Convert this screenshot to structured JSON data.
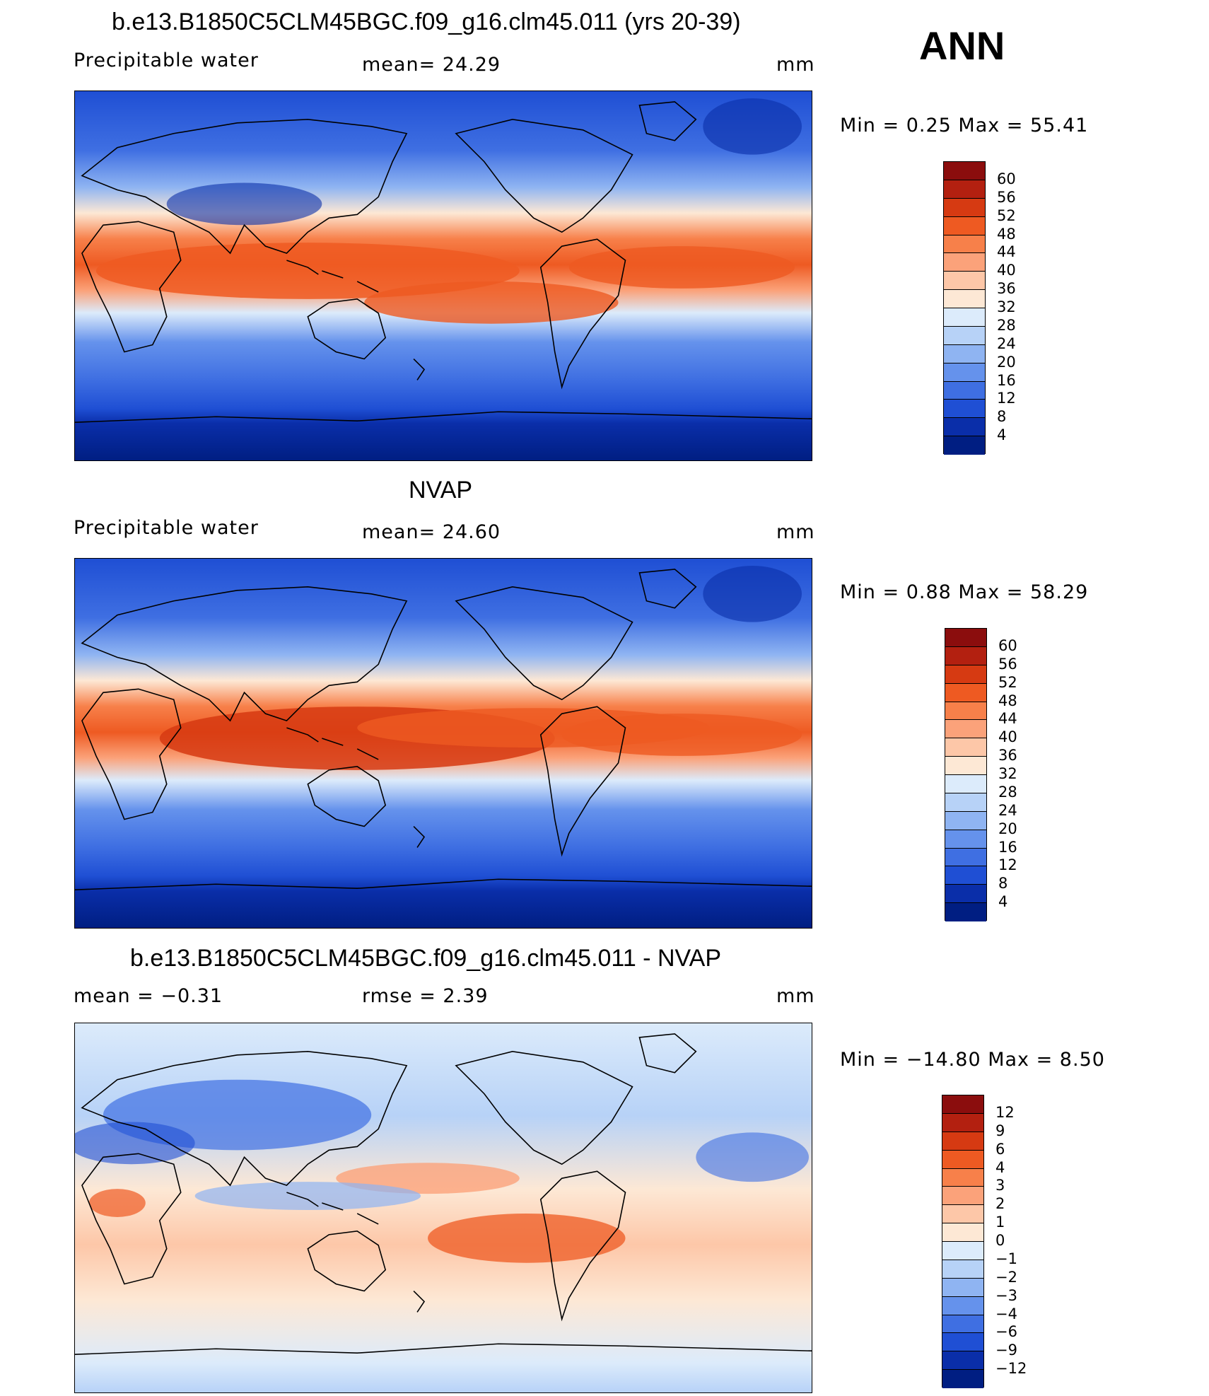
{
  "header": {
    "annotation": "ANN"
  },
  "panels": [
    {
      "title": "b.e13.B1850C5CLM45BGC.f09_g16.clm45.011 (yrs 20-39)",
      "left_label": "Precipitable  water",
      "center_label": "mean=   24.29",
      "units": "mm",
      "stats": "Min  =     0.25  Max  =    55.41",
      "colorbar_labels": [
        "60",
        "56",
        "52",
        "48",
        "44",
        "40",
        "36",
        "32",
        "28",
        "24",
        "20",
        "16",
        "12",
        "8",
        "4"
      ],
      "colorbar_colors": [
        "#8b0d0d",
        "#b32010",
        "#d63a12",
        "#ee5a22",
        "#f7804a",
        "#fba27a",
        "#fdc7a8",
        "#fde8d5",
        "#dcebfb",
        "#b7d2f7",
        "#8fb4f2",
        "#6592ec",
        "#3f6fe2",
        "#1f4fd4",
        "#0a2ea9",
        "#001e82"
      ]
    },
    {
      "title": "NVAP",
      "left_label": "Precipitable  water",
      "center_label": "mean=   24.60",
      "units": "mm",
      "stats": "Min  =     0.88  Max  =    58.29",
      "colorbar_labels": [
        "60",
        "56",
        "52",
        "48",
        "44",
        "40",
        "36",
        "32",
        "28",
        "24",
        "20",
        "16",
        "12",
        "8",
        "4"
      ],
      "colorbar_colors": [
        "#8b0d0d",
        "#b32010",
        "#d63a12",
        "#ee5a22",
        "#f7804a",
        "#fba27a",
        "#fdc7a8",
        "#fde8d5",
        "#dcebfb",
        "#b7d2f7",
        "#8fb4f2",
        "#6592ec",
        "#3f6fe2",
        "#1f4fd4",
        "#0a2ea9",
        "#001e82"
      ]
    },
    {
      "title": "b.e13.B1850C5CLM45BGC.f09_g16.clm45.011 - NVAP",
      "left_label": "mean  =    −0.31",
      "center_label": "rmse  =     2.39",
      "units": "mm",
      "stats": "Min  = −14.80  Max  =       8.50",
      "colorbar_labels": [
        "12",
        "9",
        "6",
        "4",
        "3",
        "2",
        "1",
        "0",
        "−1",
        "−2",
        "−3",
        "−4",
        "−6",
        "−9",
        "−12"
      ],
      "colorbar_colors": [
        "#8b0d0d",
        "#b32010",
        "#d63a12",
        "#ee5a22",
        "#f7804a",
        "#fba27a",
        "#fdc7a8",
        "#fde8d5",
        "#dcebfb",
        "#b7d2f7",
        "#8fb4f2",
        "#6592ec",
        "#3f6fe2",
        "#1f4fd4",
        "#0a2ea9",
        "#001e82"
      ]
    }
  ]
}
